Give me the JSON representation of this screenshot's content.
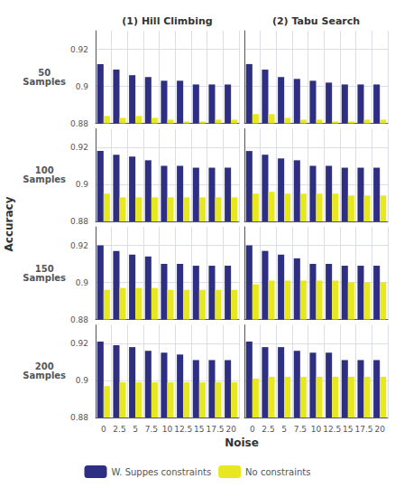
{
  "xlabel": "Noise",
  "ylabel": "Accuracy",
  "legend": "bottom",
  "chart_data": [
    {
      "type": "bar",
      "title": "(1) Hill Climbing",
      "ylabel": "50\nSamples",
      "tick_labels": "y",
      "categories": [
        "0",
        "2.5",
        "5",
        "7.5",
        "10",
        "12.5",
        "15",
        "17.5",
        "20"
      ],
      "ylim": [
        0.88,
        0.93
      ],
      "yticks": [
        0.88,
        0.9,
        0.92
      ],
      "grid": true,
      "series": [
        {
          "name": "W. Suppes constraints",
          "color": "#2e2e82",
          "values": [
            0.912,
            0.909,
            0.906,
            0.905,
            0.903,
            0.903,
            0.901,
            0.901,
            0.901
          ]
        },
        {
          "name": "No constraints",
          "color": "#e8e820",
          "values": [
            0.884,
            0.883,
            0.884,
            0.883,
            0.882,
            0.881,
            0.881,
            0.882,
            0.882
          ]
        }
      ]
    },
    {
      "type": "bar",
      "title": "(2) Tabu Search",
      "tick_labels": false,
      "categories": [
        "0",
        "2.5",
        "5",
        "7.5",
        "10",
        "12.5",
        "15",
        "17.5",
        "20"
      ],
      "ylim": [
        0.88,
        0.93
      ],
      "yticks": [
        0.88,
        0.9,
        0.92
      ],
      "grid": true,
      "series": [
        {
          "name": "W. Suppes constraints",
          "color": "#2e2e82",
          "values": [
            0.912,
            0.909,
            0.905,
            0.904,
            0.903,
            0.902,
            0.901,
            0.901,
            0.901
          ]
        },
        {
          "name": "No constraints",
          "color": "#e8e820",
          "values": [
            0.885,
            0.885,
            0.883,
            0.882,
            0.882,
            0.881,
            0.881,
            0.882,
            0.882
          ]
        }
      ]
    },
    {
      "type": "bar",
      "ylabel": "100\nSamples",
      "tick_labels": "y",
      "categories": [
        "0",
        "2.5",
        "5",
        "7.5",
        "10",
        "12.5",
        "15",
        "17.5",
        "20"
      ],
      "ylim": [
        0.88,
        0.93
      ],
      "yticks": [
        0.88,
        0.9,
        0.92
      ],
      "grid": true,
      "series": [
        {
          "name": "W. Suppes constraints",
          "color": "#2e2e82",
          "values": [
            0.918,
            0.916,
            0.915,
            0.913,
            0.91,
            0.91,
            0.909,
            0.909,
            0.909
          ]
        },
        {
          "name": "No constraints",
          "color": "#e8e820",
          "values": [
            0.895,
            0.893,
            0.893,
            0.893,
            0.893,
            0.893,
            0.893,
            0.893,
            0.893
          ]
        }
      ]
    },
    {
      "type": "bar",
      "tick_labels": false,
      "categories": [
        "0",
        "2.5",
        "5",
        "7.5",
        "10",
        "12.5",
        "15",
        "17.5",
        "20"
      ],
      "ylim": [
        0.88,
        0.93
      ],
      "yticks": [
        0.88,
        0.9,
        0.92
      ],
      "grid": true,
      "series": [
        {
          "name": "W. Suppes constraints",
          "color": "#2e2e82",
          "values": [
            0.918,
            0.916,
            0.914,
            0.913,
            0.91,
            0.91,
            0.909,
            0.909,
            0.909
          ]
        },
        {
          "name": "No constraints",
          "color": "#e8e820",
          "values": [
            0.895,
            0.896,
            0.895,
            0.895,
            0.895,
            0.895,
            0.894,
            0.894,
            0.894
          ]
        }
      ]
    },
    {
      "type": "bar",
      "ylabel": "150\nSamples",
      "tick_labels": "y",
      "categories": [
        "0",
        "2.5",
        "5",
        "7.5",
        "10",
        "12.5",
        "15",
        "17.5",
        "20"
      ],
      "ylim": [
        0.88,
        0.93
      ],
      "yticks": [
        0.88,
        0.9,
        0.92
      ],
      "grid": true,
      "series": [
        {
          "name": "W. Suppes constraints",
          "color": "#2e2e82",
          "values": [
            0.92,
            0.917,
            0.915,
            0.914,
            0.91,
            0.91,
            0.909,
            0.909,
            0.909
          ]
        },
        {
          "name": "No constraints",
          "color": "#e8e820",
          "values": [
            0.896,
            0.897,
            0.897,
            0.897,
            0.896,
            0.896,
            0.896,
            0.896,
            0.896
          ]
        }
      ]
    },
    {
      "type": "bar",
      "tick_labels": false,
      "categories": [
        "0",
        "2.5",
        "5",
        "7.5",
        "10",
        "12.5",
        "15",
        "17.5",
        "20"
      ],
      "ylim": [
        0.88,
        0.93
      ],
      "yticks": [
        0.88,
        0.9,
        0.92
      ],
      "grid": true,
      "series": [
        {
          "name": "W. Suppes constraints",
          "color": "#2e2e82",
          "values": [
            0.92,
            0.917,
            0.915,
            0.913,
            0.91,
            0.91,
            0.909,
            0.909,
            0.909
          ]
        },
        {
          "name": "No constraints",
          "color": "#e8e820",
          "values": [
            0.899,
            0.901,
            0.901,
            0.901,
            0.901,
            0.901,
            0.9,
            0.9,
            0.9
          ]
        }
      ]
    },
    {
      "type": "bar",
      "ylabel": "200\nSamples",
      "tick_labels": true,
      "categories": [
        "0",
        "2.5",
        "5",
        "7.5",
        "10",
        "12.5",
        "15",
        "17.5",
        "20"
      ],
      "ylim": [
        0.88,
        0.93
      ],
      "yticks": [
        0.88,
        0.9,
        0.92
      ],
      "grid": true,
      "series": [
        {
          "name": "W. Suppes constraints",
          "color": "#2e2e82",
          "values": [
            0.921,
            0.919,
            0.918,
            0.916,
            0.915,
            0.914,
            0.911,
            0.911,
            0.911
          ]
        },
        {
          "name": "No constraints",
          "color": "#e8e820",
          "values": [
            0.897,
            0.899,
            0.899,
            0.899,
            0.899,
            0.899,
            0.899,
            0.899,
            0.899
          ]
        }
      ]
    },
    {
      "type": "bar",
      "tick_labels": "x",
      "categories": [
        "0",
        "2.5",
        "5",
        "7.5",
        "10",
        "12.5",
        "15",
        "17.5",
        "20"
      ],
      "ylim": [
        0.88,
        0.93
      ],
      "yticks": [
        0.88,
        0.9,
        0.92
      ],
      "grid": true,
      "series": [
        {
          "name": "W. Suppes constraints",
          "color": "#2e2e82",
          "values": [
            0.921,
            0.918,
            0.918,
            0.916,
            0.915,
            0.915,
            0.911,
            0.911,
            0.911
          ]
        },
        {
          "name": "No constraints",
          "color": "#e8e820",
          "values": [
            0.901,
            0.902,
            0.902,
            0.902,
            0.902,
            0.902,
            0.902,
            0.902,
            0.902
          ]
        }
      ]
    }
  ]
}
